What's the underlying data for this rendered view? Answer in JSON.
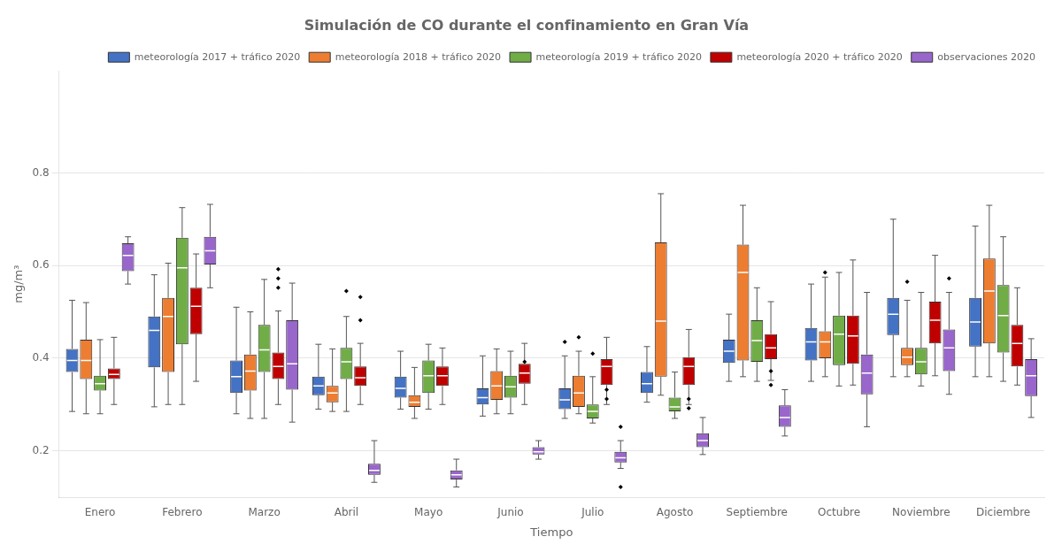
{
  "chart_data": {
    "type": "box",
    "title": "Simulación de CO durante el confinamiento en Gran Vía",
    "x_label": "Tiempo",
    "y_label": "mg/m³",
    "categories": [
      "Enero",
      "Febrero",
      "Marzo",
      "Abril",
      "Mayo",
      "Junio",
      "Julio",
      "Agosto",
      "Septiembre",
      "Octubre",
      "Noviembre",
      "Diciembre"
    ],
    "ylim": [
      0.1,
      1.02
    ],
    "yticks": [
      0.2,
      0.4,
      0.6,
      0.8
    ],
    "grid": true,
    "legend": "upper right",
    "series": [
      {
        "name": "meteorología 2017 + tráfico 2020",
        "color": "#4472C4",
        "values": [
          {
            "whislo": 0.285,
            "q1": 0.37,
            "med": 0.395,
            "q3": 0.42,
            "whishi": 0.525,
            "fliers": []
          },
          {
            "whislo": 0.295,
            "q1": 0.38,
            "med": 0.46,
            "q3": 0.49,
            "whishi": 0.58,
            "fliers": []
          },
          {
            "whislo": 0.28,
            "q1": 0.325,
            "med": 0.36,
            "q3": 0.395,
            "whishi": 0.51,
            "fliers": []
          },
          {
            "whislo": 0.29,
            "q1": 0.32,
            "med": 0.34,
            "q3": 0.36,
            "whishi": 0.43,
            "fliers": []
          },
          {
            "whislo": 0.29,
            "q1": 0.315,
            "med": 0.335,
            "q3": 0.36,
            "whishi": 0.415,
            "fliers": []
          },
          {
            "whislo": 0.275,
            "q1": 0.3,
            "med": 0.315,
            "q3": 0.335,
            "whishi": 0.405,
            "fliers": []
          },
          {
            "whislo": 0.27,
            "q1": 0.29,
            "med": 0.31,
            "q3": 0.335,
            "whishi": 0.405,
            "fliers": [
              0.435
            ]
          },
          {
            "whislo": 0.305,
            "q1": 0.325,
            "med": 0.345,
            "q3": 0.37,
            "whishi": 0.425,
            "fliers": []
          },
          {
            "whislo": 0.35,
            "q1": 0.39,
            "med": 0.415,
            "q3": 0.44,
            "whishi": 0.495,
            "fliers": []
          },
          {
            "whislo": 0.35,
            "q1": 0.395,
            "med": 0.435,
            "q3": 0.465,
            "whishi": 0.56,
            "fliers": []
          },
          {
            "whislo": 0.36,
            "q1": 0.45,
            "med": 0.495,
            "q3": 0.53,
            "whishi": 0.7,
            "fliers": []
          },
          {
            "whislo": 0.36,
            "q1": 0.425,
            "med": 0.478,
            "q3": 0.53,
            "whishi": 0.685,
            "fliers": []
          }
        ]
      },
      {
        "name": "meteorología 2018 + tráfico 2020",
        "color": "#ED7D31",
        "values": [
          {
            "whislo": 0.28,
            "q1": 0.355,
            "med": 0.395,
            "q3": 0.44,
            "whishi": 0.52,
            "fliers": []
          },
          {
            "whislo": 0.3,
            "q1": 0.37,
            "med": 0.49,
            "q3": 0.53,
            "whishi": 0.605,
            "fliers": []
          },
          {
            "whislo": 0.27,
            "q1": 0.33,
            "med": 0.372,
            "q3": 0.408,
            "whishi": 0.5,
            "fliers": []
          },
          {
            "whislo": 0.285,
            "q1": 0.305,
            "med": 0.325,
            "q3": 0.34,
            "whishi": 0.42,
            "fliers": []
          },
          {
            "whislo": 0.27,
            "q1": 0.295,
            "med": 0.305,
            "q3": 0.32,
            "whishi": 0.38,
            "fliers": []
          },
          {
            "whislo": 0.28,
            "q1": 0.31,
            "med": 0.34,
            "q3": 0.372,
            "whishi": 0.42,
            "fliers": []
          },
          {
            "whislo": 0.28,
            "q1": 0.295,
            "med": 0.325,
            "q3": 0.362,
            "whishi": 0.415,
            "fliers": [
              0.445
            ]
          },
          {
            "whislo": 0.32,
            "q1": 0.36,
            "med": 0.48,
            "q3": 0.65,
            "whishi": 0.755,
            "fliers": []
          },
          {
            "whislo": 0.36,
            "q1": 0.395,
            "med": 0.585,
            "q3": 0.645,
            "whishi": 0.73,
            "fliers": []
          },
          {
            "whislo": 0.36,
            "q1": 0.4,
            "med": 0.435,
            "q3": 0.458,
            "whishi": 0.575,
            "fliers": [
              0.585
            ]
          },
          {
            "whislo": 0.36,
            "q1": 0.385,
            "med": 0.402,
            "q3": 0.422,
            "whishi": 0.525,
            "fliers": [
              0.565
            ]
          },
          {
            "whislo": 0.36,
            "q1": 0.432,
            "med": 0.545,
            "q3": 0.615,
            "whishi": 0.73,
            "fliers": []
          }
        ]
      },
      {
        "name": "meteorología 2019 + tráfico 2020",
        "color": "#70AD47",
        "values": [
          {
            "whislo": 0.28,
            "q1": 0.33,
            "med": 0.345,
            "q3": 0.362,
            "whishi": 0.44,
            "fliers": []
          },
          {
            "whislo": 0.3,
            "q1": 0.43,
            "med": 0.595,
            "q3": 0.66,
            "whishi": 0.725,
            "fliers": []
          },
          {
            "whislo": 0.27,
            "q1": 0.37,
            "med": 0.418,
            "q3": 0.472,
            "whishi": 0.57,
            "fliers": []
          },
          {
            "whislo": 0.285,
            "q1": 0.355,
            "med": 0.392,
            "q3": 0.422,
            "whishi": 0.49,
            "fliers": [
              0.545
            ]
          },
          {
            "whislo": 0.29,
            "q1": 0.325,
            "med": 0.362,
            "q3": 0.395,
            "whishi": 0.43,
            "fliers": []
          },
          {
            "whislo": 0.28,
            "q1": 0.315,
            "med": 0.338,
            "q3": 0.362,
            "whishi": 0.415,
            "fliers": []
          },
          {
            "whislo": 0.26,
            "q1": 0.27,
            "med": 0.285,
            "q3": 0.3,
            "whishi": 0.36,
            "fliers": [
              0.41
            ]
          },
          {
            "whislo": 0.27,
            "q1": 0.285,
            "med": 0.295,
            "q3": 0.315,
            "whishi": 0.37,
            "fliers": []
          },
          {
            "whislo": 0.35,
            "q1": 0.392,
            "med": 0.438,
            "q3": 0.482,
            "whishi": 0.552,
            "fliers": []
          },
          {
            "whislo": 0.34,
            "q1": 0.385,
            "med": 0.452,
            "q3": 0.492,
            "whishi": 0.585,
            "fliers": []
          },
          {
            "whislo": 0.34,
            "q1": 0.365,
            "med": 0.392,
            "q3": 0.422,
            "whishi": 0.542,
            "fliers": []
          },
          {
            "whislo": 0.35,
            "q1": 0.412,
            "med": 0.492,
            "q3": 0.558,
            "whishi": 0.662,
            "fliers": []
          }
        ]
      },
      {
        "name": "meteorología 2020 + tráfico 2020",
        "color": "#C00000",
        "values": [
          {
            "whislo": 0.3,
            "q1": 0.355,
            "med": 0.365,
            "q3": 0.378,
            "whishi": 0.445,
            "fliers": []
          },
          {
            "whislo": 0.35,
            "q1": 0.452,
            "med": 0.512,
            "q3": 0.552,
            "whishi": 0.625,
            "fliers": []
          },
          {
            "whislo": 0.3,
            "q1": 0.355,
            "med": 0.382,
            "q3": 0.412,
            "whishi": 0.502,
            "fliers": [
              0.552,
              0.572,
              0.592
            ]
          },
          {
            "whislo": 0.3,
            "q1": 0.34,
            "med": 0.358,
            "q3": 0.382,
            "whishi": 0.432,
            "fliers": [
              0.482,
              0.532
            ]
          },
          {
            "whislo": 0.3,
            "q1": 0.34,
            "med": 0.362,
            "q3": 0.382,
            "whishi": 0.422,
            "fliers": []
          },
          {
            "whislo": 0.3,
            "q1": 0.345,
            "med": 0.368,
            "q3": 0.388,
            "whishi": 0.432,
            "fliers": [
              0.392
            ]
          },
          {
            "whislo": 0.3,
            "q1": 0.342,
            "med": 0.382,
            "q3": 0.398,
            "whishi": 0.445,
            "fliers": [
              0.312,
              0.332
            ]
          },
          {
            "whislo": 0.3,
            "q1": 0.342,
            "med": 0.382,
            "q3": 0.402,
            "whishi": 0.462,
            "fliers": [
              0.292,
              0.312
            ]
          },
          {
            "whislo": 0.352,
            "q1": 0.398,
            "med": 0.422,
            "q3": 0.452,
            "whishi": 0.522,
            "fliers": [
              0.342,
              0.372
            ]
          },
          {
            "whislo": 0.342,
            "q1": 0.388,
            "med": 0.448,
            "q3": 0.492,
            "whishi": 0.612,
            "fliers": []
          },
          {
            "whislo": 0.362,
            "q1": 0.432,
            "med": 0.482,
            "q3": 0.522,
            "whishi": 0.622,
            "fliers": []
          },
          {
            "whislo": 0.342,
            "q1": 0.382,
            "med": 0.432,
            "q3": 0.472,
            "whishi": 0.552,
            "fliers": []
          }
        ]
      },
      {
        "name": "observaciones 2020",
        "color": "#9966CC",
        "values": [
          {
            "whislo": 0.56,
            "q1": 0.588,
            "med": 0.622,
            "q3": 0.648,
            "whishi": 0.662,
            "fliers": []
          },
          {
            "whislo": 0.552,
            "q1": 0.602,
            "med": 0.632,
            "q3": 0.662,
            "whishi": 0.732,
            "fliers": []
          },
          {
            "whislo": 0.262,
            "q1": 0.332,
            "med": 0.388,
            "q3": 0.482,
            "whishi": 0.562,
            "fliers": []
          },
          {
            "whislo": 0.132,
            "q1": 0.148,
            "med": 0.158,
            "q3": 0.172,
            "whishi": 0.222,
            "fliers": []
          },
          {
            "whislo": 0.122,
            "q1": 0.138,
            "med": 0.148,
            "q3": 0.158,
            "whishi": 0.182,
            "fliers": []
          },
          {
            "whislo": 0.182,
            "q1": 0.192,
            "med": 0.198,
            "q3": 0.208,
            "whishi": 0.222,
            "fliers": []
          },
          {
            "whislo": 0.162,
            "q1": 0.175,
            "med": 0.185,
            "q3": 0.198,
            "whishi": 0.222,
            "fliers": [
              0.252,
              0.122
            ]
          },
          {
            "whislo": 0.192,
            "q1": 0.208,
            "med": 0.222,
            "q3": 0.238,
            "whishi": 0.272,
            "fliers": []
          },
          {
            "whislo": 0.232,
            "q1": 0.252,
            "med": 0.272,
            "q3": 0.298,
            "whishi": 0.332,
            "fliers": []
          },
          {
            "whislo": 0.252,
            "q1": 0.322,
            "med": 0.368,
            "q3": 0.408,
            "whishi": 0.542,
            "fliers": []
          },
          {
            "whislo": 0.322,
            "q1": 0.372,
            "med": 0.422,
            "q3": 0.462,
            "whishi": 0.542,
            "fliers": [
              0.572
            ]
          },
          {
            "whislo": 0.272,
            "q1": 0.318,
            "med": 0.362,
            "q3": 0.398,
            "whishi": 0.442,
            "fliers": []
          }
        ]
      }
    ]
  }
}
